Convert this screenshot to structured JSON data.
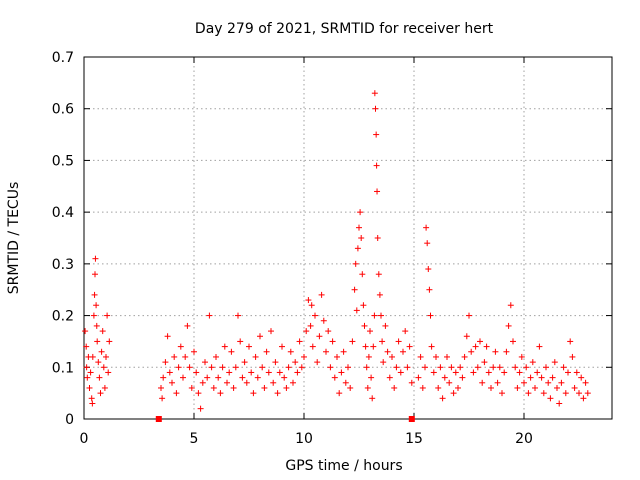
{
  "chart_data": {
    "type": "scatter",
    "title": "Day 279 of 2021, SRMTID for receiver hert",
    "xlabel": "GPS time / hours",
    "ylabel": "SRMTID / TECUs",
    "xlim": [
      0,
      24
    ],
    "ylim": [
      0,
      0.7
    ],
    "xticks": [
      0,
      5,
      10,
      15,
      20
    ],
    "yticks": [
      0,
      0.1,
      0.2,
      0.3,
      0.4,
      0.5,
      0.6,
      0.7
    ],
    "xtick_labels": [
      "0",
      "5",
      "10",
      "15",
      "20"
    ],
    "ytick_labels": [
      "0",
      "0.1",
      "0.2",
      "0.3",
      "0.4",
      "0.5",
      "0.6",
      "0.7"
    ],
    "grid": true,
    "series": [
      {
        "name": "SRMTID",
        "marker": "plus",
        "color": "#ff0000",
        "points": [
          [
            0.05,
            0.17
          ],
          [
            0.1,
            0.14
          ],
          [
            0.12,
            0.1
          ],
          [
            0.15,
            0.08
          ],
          [
            0.2,
            0.12
          ],
          [
            0.25,
            0.06
          ],
          [
            0.3,
            0.09
          ],
          [
            0.35,
            0.04
          ],
          [
            0.38,
            0.03
          ],
          [
            0.4,
            0.12
          ],
          [
            0.45,
            0.2
          ],
          [
            0.48,
            0.24
          ],
          [
            0.5,
            0.28
          ],
          [
            0.52,
            0.31
          ],
          [
            0.55,
            0.22
          ],
          [
            0.58,
            0.18
          ],
          [
            0.6,
            0.15
          ],
          [
            0.65,
            0.11
          ],
          [
            0.7,
            0.08
          ],
          [
            0.75,
            0.05
          ],
          [
            0.8,
            0.13
          ],
          [
            0.85,
            0.17
          ],
          [
            0.9,
            0.1
          ],
          [
            0.95,
            0.06
          ],
          [
            1.0,
            0.12
          ],
          [
            1.05,
            0.2
          ],
          [
            1.1,
            0.09
          ],
          [
            1.15,
            0.15
          ],
          [
            3.5,
            0.06
          ],
          [
            3.55,
            0.04
          ],
          [
            3.6,
            0.08
          ],
          [
            3.7,
            0.11
          ],
          [
            3.8,
            0.16
          ],
          [
            3.9,
            0.09
          ],
          [
            4.0,
            0.07
          ],
          [
            4.1,
            0.12
          ],
          [
            4.2,
            0.05
          ],
          [
            4.3,
            0.1
          ],
          [
            4.4,
            0.14
          ],
          [
            4.5,
            0.08
          ],
          [
            4.6,
            0.12
          ],
          [
            4.7,
            0.18
          ],
          [
            4.8,
            0.1
          ],
          [
            4.9,
            0.06
          ],
          [
            5.0,
            0.13
          ],
          [
            5.1,
            0.09
          ],
          [
            5.2,
            0.05
          ],
          [
            5.3,
            0.02
          ],
          [
            5.4,
            0.07
          ],
          [
            5.5,
            0.11
          ],
          [
            5.6,
            0.08
          ],
          [
            5.7,
            0.2
          ],
          [
            5.8,
            0.1
          ],
          [
            5.9,
            0.06
          ],
          [
            6.0,
            0.12
          ],
          [
            6.1,
            0.08
          ],
          [
            6.2,
            0.05
          ],
          [
            6.3,
            0.1
          ],
          [
            6.4,
            0.14
          ],
          [
            6.5,
            0.07
          ],
          [
            6.6,
            0.09
          ],
          [
            6.7,
            0.13
          ],
          [
            6.8,
            0.06
          ],
          [
            6.9,
            0.1
          ],
          [
            7.0,
            0.2
          ],
          [
            7.1,
            0.15
          ],
          [
            7.2,
            0.08
          ],
          [
            7.3,
            0.11
          ],
          [
            7.4,
            0.07
          ],
          [
            7.5,
            0.14
          ],
          [
            7.6,
            0.09
          ],
          [
            7.7,
            0.05
          ],
          [
            7.8,
            0.12
          ],
          [
            7.9,
            0.08
          ],
          [
            8.0,
            0.16
          ],
          [
            8.1,
            0.1
          ],
          [
            8.2,
            0.06
          ],
          [
            8.3,
            0.13
          ],
          [
            8.4,
            0.09
          ],
          [
            8.5,
            0.17
          ],
          [
            8.6,
            0.07
          ],
          [
            8.7,
            0.11
          ],
          [
            8.8,
            0.05
          ],
          [
            8.9,
            0.09
          ],
          [
            9.0,
            0.14
          ],
          [
            9.1,
            0.08
          ],
          [
            9.2,
            0.06
          ],
          [
            9.3,
            0.1
          ],
          [
            9.4,
            0.13
          ],
          [
            9.5,
            0.07
          ],
          [
            9.6,
            0.11
          ],
          [
            9.7,
            0.09
          ],
          [
            9.8,
            0.15
          ],
          [
            9.9,
            0.1
          ],
          [
            10.0,
            0.12
          ],
          [
            10.1,
            0.17
          ],
          [
            10.2,
            0.23
          ],
          [
            10.3,
            0.18
          ],
          [
            10.35,
            0.22
          ],
          [
            10.4,
            0.14
          ],
          [
            10.5,
            0.2
          ],
          [
            10.6,
            0.11
          ],
          [
            10.7,
            0.16
          ],
          [
            10.8,
            0.24
          ],
          [
            10.9,
            0.19
          ],
          [
            11.0,
            0.13
          ],
          [
            11.1,
            0.17
          ],
          [
            11.2,
            0.1
          ],
          [
            11.3,
            0.15
          ],
          [
            11.4,
            0.08
          ],
          [
            11.5,
            0.12
          ],
          [
            11.6,
            0.05
          ],
          [
            11.7,
            0.09
          ],
          [
            11.8,
            0.13
          ],
          [
            11.9,
            0.07
          ],
          [
            12.0,
            0.1
          ],
          [
            12.1,
            0.06
          ],
          [
            12.2,
            0.15
          ],
          [
            12.3,
            0.25
          ],
          [
            12.35,
            0.3
          ],
          [
            12.4,
            0.21
          ],
          [
            12.45,
            0.33
          ],
          [
            12.5,
            0.37
          ],
          [
            12.55,
            0.4
          ],
          [
            12.6,
            0.35
          ],
          [
            12.65,
            0.28
          ],
          [
            12.7,
            0.22
          ],
          [
            12.75,
            0.18
          ],
          [
            12.8,
            0.14
          ],
          [
            12.85,
            0.1
          ],
          [
            12.9,
            0.06
          ],
          [
            12.95,
            0.12
          ],
          [
            13.0,
            0.17
          ],
          [
            13.05,
            0.08
          ],
          [
            13.1,
            0.04
          ],
          [
            13.15,
            0.14
          ],
          [
            13.2,
            0.2
          ],
          [
            13.22,
            0.63
          ],
          [
            13.25,
            0.6
          ],
          [
            13.28,
            0.55
          ],
          [
            13.3,
            0.49
          ],
          [
            13.32,
            0.44
          ],
          [
            13.35,
            0.35
          ],
          [
            13.4,
            0.28
          ],
          [
            13.45,
            0.24
          ],
          [
            13.5,
            0.2
          ],
          [
            13.55,
            0.15
          ],
          [
            13.6,
            0.11
          ],
          [
            13.7,
            0.18
          ],
          [
            13.8,
            0.13
          ],
          [
            13.9,
            0.08
          ],
          [
            14.0,
            0.12
          ],
          [
            14.1,
            0.06
          ],
          [
            14.2,
            0.1
          ],
          [
            14.3,
            0.15
          ],
          [
            14.4,
            0.09
          ],
          [
            14.5,
            0.13
          ],
          [
            14.6,
            0.17
          ],
          [
            14.7,
            0.1
          ],
          [
            14.8,
            0.14
          ],
          [
            14.9,
            0.07
          ],
          [
            15.2,
            0.08
          ],
          [
            15.3,
            0.12
          ],
          [
            15.4,
            0.06
          ],
          [
            15.5,
            0.1
          ],
          [
            15.55,
            0.37
          ],
          [
            15.6,
            0.34
          ],
          [
            15.65,
            0.29
          ],
          [
            15.7,
            0.25
          ],
          [
            15.75,
            0.2
          ],
          [
            15.8,
            0.14
          ],
          [
            15.9,
            0.09
          ],
          [
            16.0,
            0.12
          ],
          [
            16.1,
            0.06
          ],
          [
            16.2,
            0.1
          ],
          [
            16.3,
            0.04
          ],
          [
            16.4,
            0.08
          ],
          [
            16.5,
            0.12
          ],
          [
            16.6,
            0.07
          ],
          [
            16.7,
            0.1
          ],
          [
            16.8,
            0.05
          ],
          [
            16.9,
            0.09
          ],
          [
            17.0,
            0.06
          ],
          [
            17.1,
            0.1
          ],
          [
            17.2,
            0.08
          ],
          [
            17.3,
            0.12
          ],
          [
            17.4,
            0.16
          ],
          [
            17.5,
            0.2
          ],
          [
            17.6,
            0.13
          ],
          [
            17.7,
            0.09
          ],
          [
            17.8,
            0.14
          ],
          [
            17.9,
            0.1
          ],
          [
            18.0,
            0.15
          ],
          [
            18.1,
            0.07
          ],
          [
            18.2,
            0.11
          ],
          [
            18.3,
            0.14
          ],
          [
            18.4,
            0.09
          ],
          [
            18.5,
            0.06
          ],
          [
            18.6,
            0.1
          ],
          [
            18.7,
            0.13
          ],
          [
            18.8,
            0.07
          ],
          [
            18.9,
            0.1
          ],
          [
            19.0,
            0.05
          ],
          [
            19.1,
            0.09
          ],
          [
            19.2,
            0.13
          ],
          [
            19.3,
            0.18
          ],
          [
            19.4,
            0.22
          ],
          [
            19.5,
            0.15
          ],
          [
            19.6,
            0.1
          ],
          [
            19.7,
            0.06
          ],
          [
            19.8,
            0.09
          ],
          [
            19.9,
            0.12
          ],
          [
            20.0,
            0.07
          ],
          [
            20.1,
            0.1
          ],
          [
            20.2,
            0.05
          ],
          [
            20.3,
            0.08
          ],
          [
            20.4,
            0.11
          ],
          [
            20.5,
            0.06
          ],
          [
            20.6,
            0.09
          ],
          [
            20.7,
            0.14
          ],
          [
            20.8,
            0.08
          ],
          [
            20.9,
            0.05
          ],
          [
            21.0,
            0.1
          ],
          [
            21.1,
            0.07
          ],
          [
            21.2,
            0.04
          ],
          [
            21.3,
            0.08
          ],
          [
            21.4,
            0.11
          ],
          [
            21.5,
            0.06
          ],
          [
            21.6,
            0.03
          ],
          [
            21.7,
            0.07
          ],
          [
            21.8,
            0.1
          ],
          [
            21.9,
            0.05
          ],
          [
            22.0,
            0.09
          ],
          [
            22.1,
            0.15
          ],
          [
            22.2,
            0.12
          ],
          [
            22.3,
            0.06
          ],
          [
            22.4,
            0.09
          ],
          [
            22.5,
            0.05
          ],
          [
            22.6,
            0.08
          ],
          [
            22.7,
            0.04
          ],
          [
            22.8,
            0.07
          ],
          [
            22.9,
            0.05
          ]
        ]
      }
    ],
    "square_markers": [
      [
        3.4,
        0.0
      ],
      [
        14.9,
        0.0
      ]
    ]
  }
}
